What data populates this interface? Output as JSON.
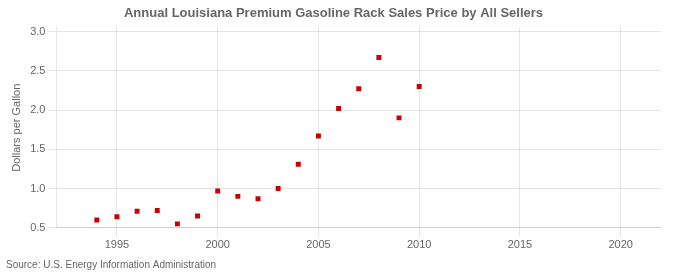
{
  "chart_data": {
    "type": "scatter",
    "title": "Annual Louisiana Premium Gasoline Rack Sales Price by All Sellers",
    "ylabel": "Dollars per Gallon",
    "annotations": [
      "Source: U.S. Energy Information Administration"
    ],
    "x": [
      1994,
      1995,
      1996,
      1997,
      1998,
      1999,
      2000,
      2001,
      2002,
      2003,
      2004,
      2005,
      2006,
      2007,
      2008,
      2009,
      2010
    ],
    "values": [
      0.6,
      0.64,
      0.71,
      0.72,
      0.55,
      0.65,
      0.97,
      0.9,
      0.87,
      1.0,
      1.31,
      1.67,
      2.02,
      2.27,
      2.67,
      1.9,
      2.3
    ],
    "color": "#cc0000",
    "marker": "square",
    "xlim": [
      1992,
      2022
    ],
    "ylim": [
      0.5,
      3.05
    ],
    "xticks": [
      1995,
      2000,
      2005,
      2010,
      2015,
      2020
    ],
    "yticks": [
      0.5,
      {
        "value": 1.0,
        "label": "1.0"
      },
      1.5,
      {
        "value": 2.0,
        "label": "2.0"
      },
      2.5,
      {
        "value": 3.0,
        "label": "3.0"
      }
    ],
    "grid": true
  }
}
